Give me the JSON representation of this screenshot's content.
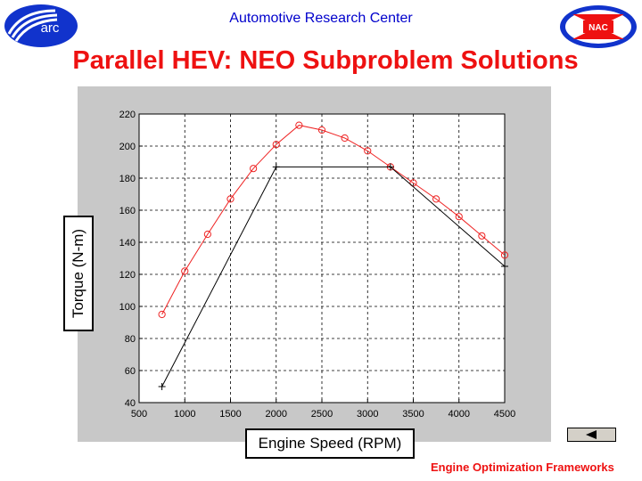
{
  "header": {
    "center_text": "Automotive Research Center",
    "left_logo_text": "arc",
    "right_logo_text": "NAC"
  },
  "slide": {
    "title": "Parallel HEV: NEO Subproblem Solutions",
    "footer": "Engine Optimization Frameworks"
  },
  "colors": {
    "title": "#ee1111",
    "header": "#0000cc",
    "plot_panel": "#c8c8c8",
    "red_series": "#ee2222",
    "black_series": "#000000"
  },
  "chart_data": {
    "type": "line",
    "xlabel": "Engine Speed (RPM)",
    "ylabel": "Torque (N-m)",
    "xlim": [
      500,
      4500
    ],
    "ylim": [
      40,
      220
    ],
    "xticks": [
      500,
      1000,
      1500,
      2000,
      2500,
      3000,
      3500,
      4000,
      4500
    ],
    "yticks": [
      40,
      60,
      80,
      100,
      120,
      140,
      160,
      180,
      200,
      220
    ],
    "grid": true,
    "series": [
      {
        "color": "#ee2222",
        "marker": "circle",
        "x": [
          750,
          1000,
          1250,
          1500,
          1750,
          2000,
          2250,
          2500,
          2750,
          3000,
          3250,
          3500,
          3750,
          4000,
          4250,
          4500
        ],
        "y": [
          95,
          122,
          145,
          167,
          186,
          201,
          213,
          210,
          205,
          197,
          187,
          177,
          167,
          156,
          144,
          132
        ]
      },
      {
        "color": "#000000",
        "marker": "plus",
        "x": [
          750,
          2000,
          3250,
          4500
        ],
        "y": [
          50,
          187,
          187,
          125
        ]
      }
    ]
  },
  "nav": {
    "back_icon": "left-triangle-icon"
  }
}
